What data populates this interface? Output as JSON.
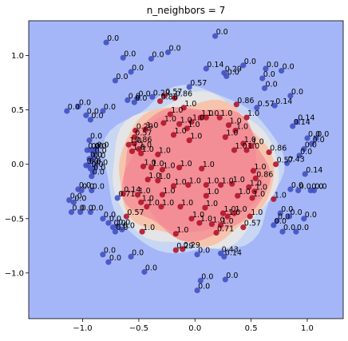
{
  "chart_data": {
    "type": "scatter",
    "title": "n_neighbors = 7",
    "xlabel": "",
    "ylabel": "",
    "xlim": [
      -1.48,
      1.32
    ],
    "ylim": [
      -1.42,
      1.32
    ],
    "x_ticks": [
      -1.0,
      -0.5,
      0.0,
      0.5,
      1.0
    ],
    "y_ticks": [
      -1.0,
      -0.5,
      0.0,
      0.5,
      1.0
    ],
    "x_tick_labels": [
      "−1.0",
      "−0.5",
      "0.0",
      "0.5",
      "1.0"
    ],
    "y_tick_labels": [
      "−1.0",
      "−0.5",
      "0.0",
      "0.5",
      "1.0"
    ],
    "grid": false,
    "colors": {
      "background": "#a5b6f8",
      "light_blue": "#c7d6f3",
      "pale": "#e5e4e6",
      "peach": "#f6c4ad",
      "salmon": "#f59a9a",
      "core": "#f38d96",
      "point_blue": "#4051c2",
      "point_red": "#b1142a"
    },
    "decision_regions": [
      {
        "name": "light_blue",
        "rx": 0.79,
        "ry": 0.76,
        "cx": -0.02,
        "cy": -0.07
      },
      {
        "name": "pale",
        "rx": 0.74,
        "ry": 0.7,
        "cx": -0.01,
        "cy": -0.07
      },
      {
        "name": "peach",
        "rx": 0.69,
        "ry": 0.65,
        "cx": 0.0,
        "cy": -0.07
      },
      {
        "name": "salmon",
        "rx": 0.65,
        "ry": 0.61,
        "cx": 0.0,
        "cy": -0.07
      },
      {
        "name": "core",
        "rx": 0.6,
        "ry": 0.56,
        "cx": 0.0,
        "cy": -0.06
      }
    ],
    "points": [
      {
        "x": -0.79,
        "y": 1.12,
        "label": "0.0",
        "class": 0
      },
      {
        "x": -0.64,
        "y": 0.98,
        "label": "0.0",
        "class": 0
      },
      {
        "x": -0.39,
        "y": 0.97,
        "label": "0.0",
        "class": 0
      },
      {
        "x": -0.24,
        "y": 1.03,
        "label": "0.0",
        "class": 0
      },
      {
        "x": 0.18,
        "y": 1.18,
        "label": "0.0",
        "class": 0
      },
      {
        "x": -0.57,
        "y": 0.85,
        "label": "0.0",
        "class": 0
      },
      {
        "x": -0.71,
        "y": 0.77,
        "label": "0.0",
        "class": 0
      },
      {
        "x": 0.1,
        "y": 0.88,
        "label": "0.14",
        "class": 0
      },
      {
        "x": 0.26,
        "y": 0.84,
        "label": "0.29",
        "class": 0
      },
      {
        "x": 0.43,
        "y": 0.91,
        "label": "0.0",
        "class": 0
      },
      {
        "x": 0.28,
        "y": 0.81,
        "label": "0.0",
        "class": 0
      },
      {
        "x": 0.63,
        "y": 0.88,
        "label": "0.0",
        "class": 0
      },
      {
        "x": 0.77,
        "y": 0.86,
        "label": "0.0",
        "class": 0
      },
      {
        "x": 0.6,
        "y": 0.79,
        "label": "0.0",
        "class": 0
      },
      {
        "x": 0.62,
        "y": 0.7,
        "label": "0.0",
        "class": 0
      },
      {
        "x": 0.85,
        "y": 0.63,
        "label": "0.0",
        "class": 0
      },
      {
        "x": -0.05,
        "y": 0.71,
        "label": "0.57",
        "class": 0
      },
      {
        "x": -0.38,
        "y": 0.62,
        "label": "0.29",
        "class": 0
      },
      {
        "x": -0.51,
        "y": 0.61,
        "label": "0.0",
        "class": 0
      },
      {
        "x": -0.6,
        "y": 0.59,
        "label": "0.0",
        "class": 0
      },
      {
        "x": -1.04,
        "y": 0.53,
        "label": "0.0",
        "class": 0
      },
      {
        "x": -1.14,
        "y": 0.49,
        "label": "0.0",
        "class": 0
      },
      {
        "x": -0.82,
        "y": 0.49,
        "label": "0.0",
        "class": 0
      },
      {
        "x": -0.97,
        "y": 0.45,
        "label": "0.0",
        "class": 0
      },
      {
        "x": -0.93,
        "y": 0.41,
        "label": "0.0",
        "class": 0
      },
      {
        "x": 0.71,
        "y": 0.54,
        "label": "0.14",
        "class": 0
      },
      {
        "x": 0.55,
        "y": 0.52,
        "label": "0.57",
        "class": 0
      },
      {
        "x": 0.91,
        "y": 0.39,
        "label": "0.14",
        "class": 0
      },
      {
        "x": 0.87,
        "y": 0.35,
        "label": "0.14",
        "class": 0
      },
      {
        "x": -0.94,
        "y": 0.22,
        "label": "0.0",
        "class": 0
      },
      {
        "x": -0.9,
        "y": 0.13,
        "label": "0.0",
        "class": 0
      },
      {
        "x": -0.93,
        "y": 0.13,
        "label": "0.0",
        "class": 0
      },
      {
        "x": -0.88,
        "y": 0.14,
        "label": "0.0",
        "class": 0
      },
      {
        "x": -0.9,
        "y": 0.09,
        "label": "0.0",
        "class": 0
      },
      {
        "x": -0.94,
        "y": 0.05,
        "label": "0.0",
        "class": 0
      },
      {
        "x": -0.91,
        "y": 0.04,
        "label": "0.0",
        "class": 0
      },
      {
        "x": -0.95,
        "y": -0.01,
        "label": "0.0",
        "class": 0
      },
      {
        "x": -0.89,
        "y": -0.02,
        "label": "0.0",
        "class": 0
      },
      {
        "x": -0.93,
        "y": -0.04,
        "label": "0.0",
        "class": 0
      },
      {
        "x": -0.97,
        "y": -0.01,
        "label": "0.0",
        "class": 0
      },
      {
        "x": -0.91,
        "y": -0.07,
        "label": "0.0",
        "class": 0
      },
      {
        "x": -0.92,
        "y": -0.11,
        "label": "0.0",
        "class": 0
      },
      {
        "x": 1.0,
        "y": 0.24,
        "label": "0.0",
        "class": 0
      },
      {
        "x": 1.08,
        "y": 0.24,
        "label": "0.0",
        "class": 0
      },
      {
        "x": 1.04,
        "y": 0.19,
        "label": "0.0",
        "class": 0
      },
      {
        "x": 0.97,
        "y": 0.14,
        "label": "0.0",
        "class": 0
      },
      {
        "x": 0.93,
        "y": 0.08,
        "label": "0.0",
        "class": 0
      },
      {
        "x": 0.82,
        "y": 0.01,
        "label": "0.43",
        "class": 0
      },
      {
        "x": 0.98,
        "y": -0.09,
        "label": "0.14",
        "class": 0
      },
      {
        "x": -0.96,
        "y": 0.13,
        "label": "0.0",
        "class": 0
      },
      {
        "x": -1.04,
        "y": -0.23,
        "label": "0.0",
        "class": 0
      },
      {
        "x": -1.01,
        "y": -0.24,
        "label": "0.0",
        "class": 0
      },
      {
        "x": -0.92,
        "y": -0.24,
        "label": "0.0",
        "class": 0
      },
      {
        "x": -1.12,
        "y": -0.33,
        "label": "0.0",
        "class": 0
      },
      {
        "x": -1.08,
        "y": -0.35,
        "label": "0.0",
        "class": 0
      },
      {
        "x": -1.1,
        "y": -0.44,
        "label": "0.0",
        "class": 0
      },
      {
        "x": -1.02,
        "y": -0.44,
        "label": "0.0",
        "class": 0
      },
      {
        "x": -0.69,
        "y": -0.31,
        "label": "0.71",
        "class": 0
      },
      {
        "x": -0.93,
        "y": -0.44,
        "label": "0.0",
        "class": 0
      },
      {
        "x": -0.82,
        "y": -0.5,
        "label": "0.0",
        "class": 0
      },
      {
        "x": -0.77,
        "y": -0.54,
        "label": "0.0",
        "class": 0
      },
      {
        "x": -0.73,
        "y": -0.58,
        "label": "0.0",
        "class": 0
      },
      {
        "x": -0.69,
        "y": -0.57,
        "label": "0.0",
        "class": 0
      },
      {
        "x": -0.65,
        "y": -0.6,
        "label": "0.0",
        "class": 0
      },
      {
        "x": -0.71,
        "y": -0.62,
        "label": "0.0",
        "class": 0
      },
      {
        "x": 0.85,
        "y": -0.23,
        "label": "0.0",
        "class": 0
      },
      {
        "x": 0.92,
        "y": -0.24,
        "label": "0.0",
        "class": 0
      },
      {
        "x": 1.03,
        "y": -0.24,
        "label": "0.0",
        "class": 0
      },
      {
        "x": 1.06,
        "y": -0.24,
        "label": "0.0",
        "class": 0
      },
      {
        "x": 0.76,
        "y": -0.45,
        "label": "0.0",
        "class": 0
      },
      {
        "x": 0.84,
        "y": -0.48,
        "label": "0.0",
        "class": 0
      },
      {
        "x": 0.97,
        "y": -0.5,
        "label": "0.0",
        "class": 0
      },
      {
        "x": 0.73,
        "y": -0.52,
        "label": "0.0",
        "class": 0
      },
      {
        "x": 0.7,
        "y": -0.56,
        "label": "0.0",
        "class": 0
      },
      {
        "x": 0.78,
        "y": -0.62,
        "label": "0.0",
        "class": 0
      },
      {
        "x": 0.9,
        "y": -0.62,
        "label": "0.0",
        "class": 0
      },
      {
        "x": -0.82,
        "y": -0.83,
        "label": "0.0",
        "class": 0
      },
      {
        "x": -0.77,
        "y": -0.9,
        "label": "0.0",
        "class": 0
      },
      {
        "x": -0.45,
        "y": -0.99,
        "label": "0.0",
        "class": 0
      },
      {
        "x": -0.57,
        "y": -0.85,
        "label": "0.0",
        "class": 0
      },
      {
        "x": 0.02,
        "y": -0.83,
        "label": "0.0",
        "class": 0
      },
      {
        "x": 0.23,
        "y": -0.82,
        "label": "0.43",
        "class": 0
      },
      {
        "x": 0.26,
        "y": -0.85,
        "label": "0.14",
        "class": 0
      },
      {
        "x": 0.05,
        "y": -1.07,
        "label": "0.0",
        "class": 0
      },
      {
        "x": 0.27,
        "y": -1.06,
        "label": "0.0",
        "class": 0
      },
      {
        "x": 0.02,
        "y": -1.16,
        "label": "0.0",
        "class": 0
      },
      {
        "x": -0.54,
        "y": 0.57,
        "label": "0.0",
        "class": 0
      },
      {
        "x": -0.27,
        "y": 0.63,
        "label": "0.57",
        "class": 1
      },
      {
        "x": -0.18,
        "y": 0.61,
        "label": "0.86",
        "class": 1
      },
      {
        "x": -0.31,
        "y": 0.58,
        "label": "0.86",
        "class": 1
      },
      {
        "x": -0.22,
        "y": 0.46,
        "label": "1.0",
        "class": 1
      },
      {
        "x": -0.1,
        "y": 0.52,
        "label": "1.0",
        "class": 1
      },
      {
        "x": 0.05,
        "y": 0.43,
        "label": "1.0",
        "class": 1
      },
      {
        "x": 0.1,
        "y": 0.43,
        "label": "1.0",
        "class": 1
      },
      {
        "x": 0.22,
        "y": 0.43,
        "label": "1.0",
        "class": 1
      },
      {
        "x": -0.03,
        "y": 0.39,
        "label": "1.0",
        "class": 1
      },
      {
        "x": -0.28,
        "y": 0.38,
        "label": "1.0",
        "class": 1
      },
      {
        "x": -0.14,
        "y": 0.37,
        "label": "1.0",
        "class": 1
      },
      {
        "x": -0.07,
        "y": 0.33,
        "label": "1.0",
        "class": 1
      },
      {
        "x": 0.37,
        "y": 0.55,
        "label": "0.86",
        "class": 1
      },
      {
        "x": 0.46,
        "y": 0.43,
        "label": "1.0",
        "class": 1
      },
      {
        "x": 0.3,
        "y": 0.36,
        "label": "1.0",
        "class": 1
      },
      {
        "x": 0.36,
        "y": 0.31,
        "label": "1.0",
        "class": 1
      },
      {
        "x": -0.53,
        "y": 0.31,
        "label": "0.29",
        "class": 1
      },
      {
        "x": -0.44,
        "y": 0.32,
        "label": "1.0",
        "class": 1
      },
      {
        "x": -0.54,
        "y": 0.25,
        "label": "0.57",
        "class": 1
      },
      {
        "x": -0.54,
        "y": 0.19,
        "label": "0.86",
        "class": 1
      },
      {
        "x": -0.59,
        "y": 0.18,
        "label": "1.0",
        "class": 1
      },
      {
        "x": -0.5,
        "y": 0.14,
        "label": "1.0",
        "class": 1
      },
      {
        "x": -0.56,
        "y": 0.12,
        "label": "1.0",
        "class": 1
      },
      {
        "x": -0.48,
        "y": 0.1,
        "label": "1.0",
        "class": 1
      },
      {
        "x": -0.19,
        "y": 0.27,
        "label": "1.0",
        "class": 1
      },
      {
        "x": -0.05,
        "y": 0.22,
        "label": "1.0",
        "class": 1
      },
      {
        "x": 0.27,
        "y": 0.25,
        "label": "1.0",
        "class": 1
      },
      {
        "x": 0.43,
        "y": 0.19,
        "label": "1.0",
        "class": 1
      },
      {
        "x": 0.5,
        "y": 0.17,
        "label": "1.0",
        "class": 1
      },
      {
        "x": 0.35,
        "y": 0.13,
        "label": "1.0",
        "class": 1
      },
      {
        "x": 0.46,
        "y": 0.13,
        "label": "1.0",
        "class": 1
      },
      {
        "x": 0.66,
        "y": 0.11,
        "label": "0.86",
        "class": 1
      },
      {
        "x": -0.33,
        "y": 0.09,
        "label": "1.0",
        "class": 1
      },
      {
        "x": -0.46,
        "y": -0.02,
        "label": "1.0",
        "class": 1
      },
      {
        "x": -0.39,
        "y": -0.03,
        "label": "1.0",
        "class": 1
      },
      {
        "x": -0.29,
        "y": -0.05,
        "label": "1.0",
        "class": 1
      },
      {
        "x": -0.14,
        "y": -0.03,
        "label": "1.0",
        "class": 1
      },
      {
        "x": 0.06,
        "y": -0.04,
        "label": "1.0",
        "class": 1
      },
      {
        "x": 0.52,
        "y": -0.06,
        "label": "1.0",
        "class": 1
      },
      {
        "x": 0.72,
        "y": 0.0,
        "label": "0.57",
        "class": 1
      },
      {
        "x": 0.54,
        "y": -0.13,
        "label": "0.86",
        "class": 1
      },
      {
        "x": -0.42,
        "y": -0.14,
        "label": "1.0",
        "class": 1
      },
      {
        "x": -0.33,
        "y": -0.15,
        "label": "1.0",
        "class": 1
      },
      {
        "x": -0.19,
        "y": -0.2,
        "label": "1.0",
        "class": 1
      },
      {
        "x": -0.06,
        "y": -0.19,
        "label": "1.0",
        "class": 1
      },
      {
        "x": 0.1,
        "y": -0.19,
        "label": "1.0",
        "class": 1
      },
      {
        "x": 0.23,
        "y": -0.19,
        "label": "1.0",
        "class": 1
      },
      {
        "x": 0.33,
        "y": -0.18,
        "label": "1.0",
        "class": 1
      },
      {
        "x": 0.48,
        "y": -0.21,
        "label": "1.0",
        "class": 1
      },
      {
        "x": 0.53,
        "y": -0.25,
        "label": "1.0",
        "class": 1
      },
      {
        "x": -0.64,
        "y": -0.27,
        "label": "0.14",
        "class": 1
      },
      {
        "x": -0.51,
        "y": -0.28,
        "label": "1.0",
        "class": 1
      },
      {
        "x": -0.29,
        "y": -0.28,
        "label": "1.0",
        "class": 1
      },
      {
        "x": 0.1,
        "y": -0.29,
        "label": "1.0",
        "class": 1
      },
      {
        "x": 0.38,
        "y": -0.29,
        "label": "1.0",
        "class": 1
      },
      {
        "x": 0.51,
        "y": -0.31,
        "label": "1.0",
        "class": 1
      },
      {
        "x": 0.7,
        "y": -0.32,
        "label": "1.0",
        "class": 1
      },
      {
        "x": -0.48,
        "y": -0.35,
        "label": "1.0",
        "class": 1
      },
      {
        "x": -0.43,
        "y": -0.39,
        "label": "1.0",
        "class": 1
      },
      {
        "x": -0.3,
        "y": -0.39,
        "label": "1.0",
        "class": 1
      },
      {
        "x": -0.13,
        "y": -0.39,
        "label": "1.0",
        "class": 1
      },
      {
        "x": 0.09,
        "y": -0.4,
        "label": "1.0",
        "class": 1
      },
      {
        "x": 0.25,
        "y": -0.45,
        "label": "1.0",
        "class": 1
      },
      {
        "x": 0.29,
        "y": -0.48,
        "label": "1.0",
        "class": 1
      },
      {
        "x": 0.35,
        "y": -0.45,
        "label": "1.0",
        "class": 1
      },
      {
        "x": 0.49,
        "y": -0.48,
        "label": "1.0",
        "class": 1
      },
      {
        "x": -0.61,
        "y": -0.48,
        "label": "0.57",
        "class": 1
      },
      {
        "x": -0.03,
        "y": -0.5,
        "label": "1.0",
        "class": 1
      },
      {
        "x": 0.04,
        "y": -0.54,
        "label": "1.0",
        "class": 1
      },
      {
        "x": 0.15,
        "y": -0.55,
        "label": "1.0",
        "class": 1
      },
      {
        "x": 0.23,
        "y": -0.56,
        "label": "1.0",
        "class": 1
      },
      {
        "x": 0.43,
        "y": -0.58,
        "label": "0.57",
        "class": 1
      },
      {
        "x": -0.47,
        "y": -0.62,
        "label": "1.0",
        "class": 1
      },
      {
        "x": -0.17,
        "y": -0.64,
        "label": "1.0",
        "class": 1
      },
      {
        "x": 0.19,
        "y": -0.63,
        "label": "0.71",
        "class": 1
      },
      {
        "x": -0.17,
        "y": -0.79,
        "label": "0.29",
        "class": 1
      },
      {
        "x": -0.11,
        "y": -0.78,
        "label": "0.29",
        "class": 1
      }
    ]
  }
}
